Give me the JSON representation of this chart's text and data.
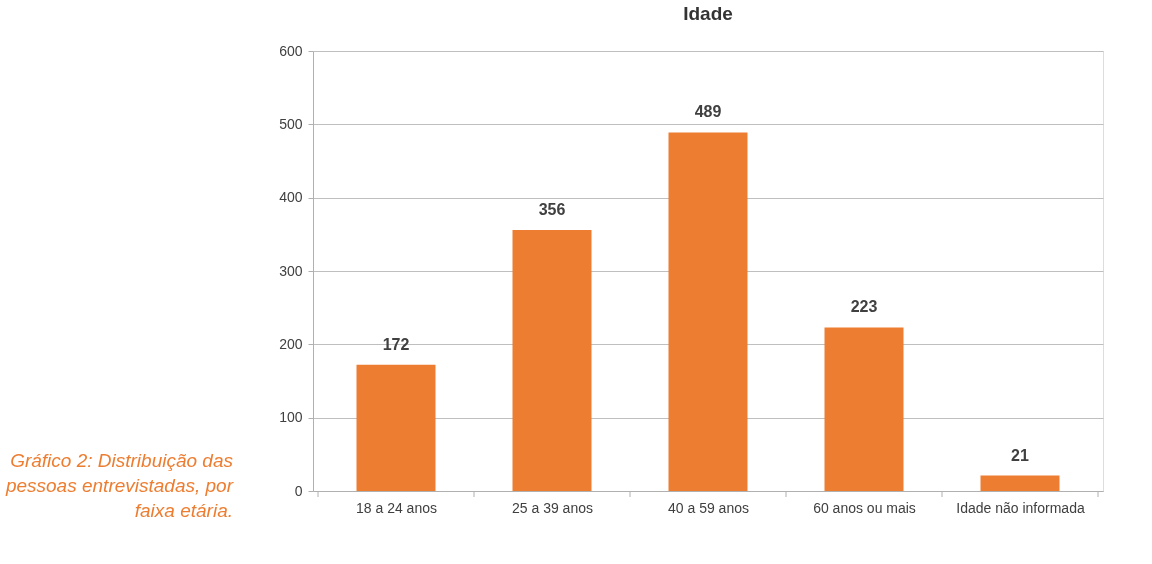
{
  "chart_data": {
    "type": "bar",
    "title": "Idade",
    "categories": [
      "18 a 24 anos",
      "25 a 39 anos",
      "40 a 59 anos",
      "60 anos ou mais",
      "Idade não informada"
    ],
    "values": [
      172,
      356,
      489,
      223,
      21
    ],
    "color": "#ed7d31",
    "ylim": [
      0,
      600
    ],
    "yticks": [
      0,
      100,
      200,
      300,
      400,
      500,
      600
    ],
    "grid": "y",
    "data_labels": true,
    "annotations": [
      "Gráfico 2: Distribuição das pessoas entrevistadas, por faixa etária."
    ]
  }
}
